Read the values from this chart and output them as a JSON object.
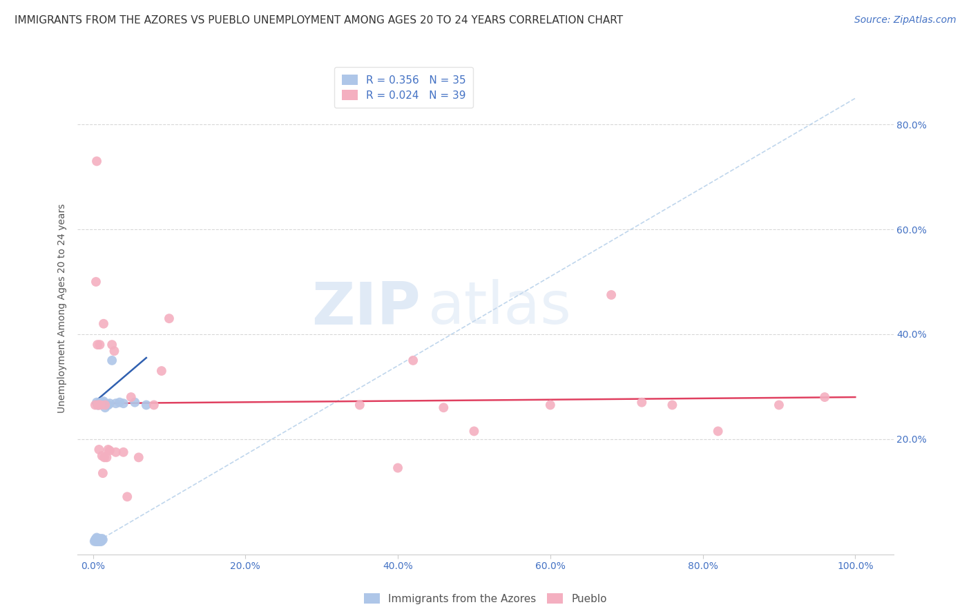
{
  "title": "IMMIGRANTS FROM THE AZORES VS PUEBLO UNEMPLOYMENT AMONG AGES 20 TO 24 YEARS CORRELATION CHART",
  "source": "Source: ZipAtlas.com",
  "ylabel": "Unemployment Among Ages 20 to 24 years",
  "xlim": [
    -0.02,
    1.05
  ],
  "ylim": [
    -0.02,
    0.92
  ],
  "xticks": [
    0.0,
    0.2,
    0.4,
    0.6,
    0.8,
    1.0
  ],
  "xticklabels": [
    "0.0%",
    "20.0%",
    "40.0%",
    "60.0%",
    "80.0%",
    "100.0%"
  ],
  "right_yticks": [
    0.2,
    0.4,
    0.6,
    0.8
  ],
  "right_yticklabels": [
    "20.0%",
    "40.0%",
    "60.0%",
    "80.0%"
  ],
  "watermark_zip": "ZIP",
  "watermark_atlas": "atlas",
  "legend_entries": [
    {
      "label": "R = 0.356   N = 35",
      "color": "#aec6e8"
    },
    {
      "label": "R = 0.024   N = 39",
      "color": "#f4afc0"
    }
  ],
  "blue_scatter_x": [
    0.002,
    0.003,
    0.004,
    0.004,
    0.005,
    0.005,
    0.005,
    0.006,
    0.006,
    0.006,
    0.007,
    0.007,
    0.008,
    0.008,
    0.009,
    0.009,
    0.01,
    0.01,
    0.011,
    0.011,
    0.012,
    0.012,
    0.013,
    0.014,
    0.015,
    0.016,
    0.018,
    0.02,
    0.022,
    0.025,
    0.03,
    0.035,
    0.04,
    0.055,
    0.07
  ],
  "blue_scatter_y": [
    0.005,
    0.008,
    0.005,
    0.01,
    0.005,
    0.012,
    0.27,
    0.005,
    0.01,
    0.265,
    0.005,
    0.265,
    0.008,
    0.268,
    0.005,
    0.01,
    0.005,
    0.268,
    0.005,
    0.27,
    0.01,
    0.27,
    0.008,
    0.272,
    0.268,
    0.26,
    0.265,
    0.265,
    0.268,
    0.35,
    0.268,
    0.27,
    0.268,
    0.27,
    0.265
  ],
  "pink_scatter_x": [
    0.003,
    0.004,
    0.005,
    0.006,
    0.007,
    0.008,
    0.008,
    0.009,
    0.01,
    0.012,
    0.013,
    0.014,
    0.015,
    0.016,
    0.018,
    0.02,
    0.022,
    0.025,
    0.028,
    0.03,
    0.04,
    0.045,
    0.05,
    0.06,
    0.08,
    0.09,
    0.1,
    0.35,
    0.4,
    0.42,
    0.46,
    0.5,
    0.6,
    0.68,
    0.72,
    0.76,
    0.82,
    0.9,
    0.96
  ],
  "pink_scatter_y": [
    0.265,
    0.5,
    0.73,
    0.38,
    0.265,
    0.265,
    0.18,
    0.38,
    0.265,
    0.168,
    0.135,
    0.42,
    0.165,
    0.265,
    0.165,
    0.18,
    0.178,
    0.38,
    0.368,
    0.175,
    0.175,
    0.09,
    0.28,
    0.165,
    0.265,
    0.33,
    0.43,
    0.265,
    0.145,
    0.35,
    0.26,
    0.215,
    0.265,
    0.475,
    0.27,
    0.265,
    0.215,
    0.265,
    0.28
  ],
  "blue_line_x": [
    0.0,
    0.07
  ],
  "blue_line_y": [
    0.268,
    0.355
  ],
  "pink_line_x": [
    0.0,
    1.0
  ],
  "pink_line_y": [
    0.268,
    0.28
  ],
  "dashed_line_x": [
    0.0,
    1.0
  ],
  "dashed_line_y": [
    0.0,
    0.85
  ],
  "scatter_size": 100,
  "blue_color": "#aec6e8",
  "pink_color": "#f4afc0",
  "blue_line_color": "#3060b0",
  "pink_line_color": "#e04060",
  "dashed_line_color": "#b0cce8",
  "title_fontsize": 11,
  "axis_label_fontsize": 10,
  "tick_fontsize": 10,
  "legend_fontsize": 11,
  "source_fontsize": 10,
  "background_color": "#ffffff",
  "grid_color": "#d8d8d8",
  "bottom_legend": [
    {
      "label": "Immigrants from the Azores",
      "color": "#aec6e8"
    },
    {
      "label": "Pueblo",
      "color": "#f4afc0"
    }
  ]
}
